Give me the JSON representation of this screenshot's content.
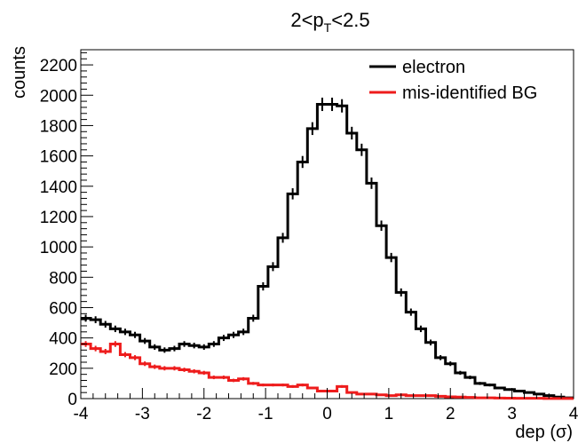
{
  "chart_data": {
    "type": "histogram",
    "title": "2<p",
    "title_subscript": "T",
    "title_suffix": "<2.5",
    "xlabel": "dep (σ)",
    "ylabel": "counts",
    "xlim": [
      -4,
      4
    ],
    "ylim": [
      0,
      2300
    ],
    "x_ticks": [
      "-4",
      "-3",
      "-2",
      "-1",
      "0",
      "1",
      "2",
      "3",
      "4"
    ],
    "y_ticks": [
      "0",
      "200",
      "400",
      "600",
      "800",
      "1000",
      "1200",
      "1400",
      "1600",
      "1800",
      "2000",
      "2200"
    ],
    "bin_edges_start": -4,
    "bin_width": 0.16,
    "legend_position": "top-right",
    "series": [
      {
        "name": "electron",
        "color": "#000000",
        "values": [
          530,
          520,
          490,
          460,
          440,
          420,
          380,
          340,
          320,
          330,
          360,
          350,
          340,
          360,
          400,
          420,
          440,
          530,
          740,
          870,
          1060,
          1350,
          1560,
          1780,
          1940,
          1940,
          1930,
          1750,
          1640,
          1420,
          1140,
          930,
          700,
          570,
          460,
          370,
          270,
          230,
          170,
          140,
          100,
          90,
          70,
          60,
          50,
          40,
          30,
          20,
          10,
          5
        ]
      },
      {
        "name": "mis-identified BG",
        "color": "#ee1c1c",
        "values": [
          360,
          330,
          310,
          360,
          290,
          270,
          230,
          210,
          200,
          200,
          190,
          180,
          170,
          140,
          140,
          120,
          130,
          100,
          90,
          90,
          90,
          80,
          90,
          70,
          50,
          50,
          80,
          40,
          30,
          30,
          25,
          20,
          25,
          20,
          20,
          20,
          15,
          12,
          10,
          8,
          5,
          5,
          4,
          3,
          2,
          2,
          2,
          1,
          1,
          1
        ]
      }
    ]
  }
}
